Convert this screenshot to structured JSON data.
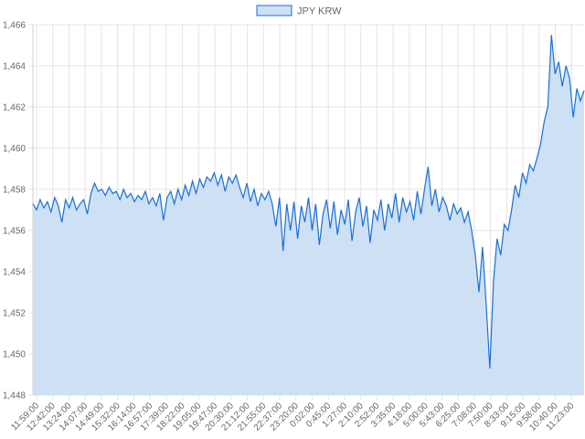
{
  "chart_data": {
    "type": "area",
    "title": "",
    "legend": [
      {
        "label": "JPY KRW",
        "position": "top-center"
      }
    ],
    "colors": {
      "line": "#1a6fd6",
      "fill": "#cde0f4",
      "grid": "#e4e4e4"
    },
    "xlabel": "",
    "ylabel": "",
    "ylim": [
      1448,
      1466
    ],
    "yticks": [
      1448,
      1450,
      1452,
      1454,
      1456,
      1458,
      1460,
      1462,
      1464,
      1466
    ],
    "ytick_labels": [
      "1,448",
      "1,450",
      "1,452",
      "1,454",
      "1,456",
      "1,458",
      "1,460",
      "1,462",
      "1,464",
      "1,466"
    ],
    "xtick_labels": [
      "11:59:00",
      "12:42:00",
      "13:24:00",
      "14:07:00",
      "14:49:00",
      "15:32:00",
      "16:14:00",
      "16:57:00",
      "17:39:00",
      "18:22:00",
      "19:05:00",
      "19:47:00",
      "20:30:00",
      "21:12:00",
      "21:55:00",
      "22:37:00",
      "23:20:00",
      "0:02:00",
      "0:45:00",
      "1:27:00",
      "2:10:00",
      "2:52:00",
      "3:35:00",
      "4:18:00",
      "5:00:00",
      "5:43:00",
      "6:25:00",
      "7:08:00",
      "7:50:00",
      "8:33:00",
      "9:15:00",
      "9:58:00",
      "10:40:00",
      "11:23:00"
    ],
    "grid": true,
    "series": [
      {
        "name": "JPY KRW",
        "values": [
          1457.3,
          1457.0,
          1457.5,
          1457.1,
          1457.4,
          1456.9,
          1457.6,
          1457.2,
          1456.4,
          1457.5,
          1457.1,
          1457.6,
          1457.0,
          1457.3,
          1457.5,
          1456.8,
          1457.8,
          1458.3,
          1457.9,
          1458.0,
          1457.7,
          1458.1,
          1457.8,
          1457.9,
          1457.5,
          1458.0,
          1457.6,
          1457.8,
          1457.4,
          1457.7,
          1457.5,
          1457.9,
          1457.3,
          1457.6,
          1457.2,
          1457.8,
          1456.5,
          1457.6,
          1457.9,
          1457.3,
          1458.0,
          1457.5,
          1458.2,
          1457.7,
          1458.4,
          1457.8,
          1458.5,
          1458.1,
          1458.6,
          1458.4,
          1458.8,
          1458.2,
          1458.7,
          1457.9,
          1458.6,
          1458.3,
          1458.7,
          1458.1,
          1457.6,
          1458.3,
          1457.4,
          1458.0,
          1457.2,
          1457.8,
          1457.5,
          1457.9,
          1457.3,
          1456.2,
          1457.6,
          1455.0,
          1457.3,
          1456.0,
          1457.4,
          1455.6,
          1457.2,
          1456.4,
          1457.6,
          1456.0,
          1457.3,
          1455.3,
          1456.8,
          1457.5,
          1456.1,
          1457.4,
          1455.8,
          1457.0,
          1456.3,
          1457.5,
          1455.5,
          1456.9,
          1457.6,
          1456.2,
          1457.2,
          1455.4,
          1457.0,
          1456.5,
          1457.5,
          1456.0,
          1457.3,
          1456.6,
          1457.8,
          1456.4,
          1457.6,
          1456.9,
          1457.4,
          1456.5,
          1457.9,
          1456.8,
          1458.0,
          1459.1,
          1457.2,
          1458.0,
          1456.9,
          1457.6,
          1457.2,
          1456.5,
          1457.3,
          1456.8,
          1457.1,
          1456.4,
          1456.9,
          1456.0,
          1454.8,
          1453.0,
          1455.2,
          1452.4,
          1449.3,
          1453.5,
          1455.6,
          1454.8,
          1456.3,
          1456.0,
          1457.0,
          1458.2,
          1457.6,
          1458.8,
          1458.3,
          1459.2,
          1458.9,
          1459.5,
          1460.2,
          1461.3,
          1462.0,
          1465.5,
          1463.6,
          1464.2,
          1463.0,
          1464.0,
          1463.4,
          1461.5,
          1462.9,
          1462.3,
          1462.8
        ]
      }
    ]
  }
}
